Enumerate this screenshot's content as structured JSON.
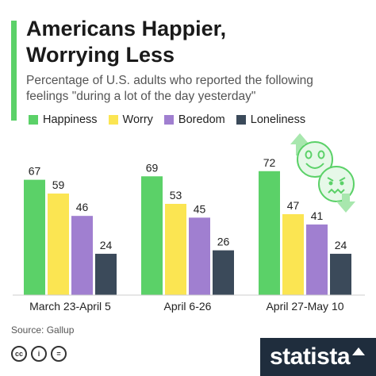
{
  "header": {
    "title_line1": "Americans Happier,",
    "title_line2": "Worrying Less",
    "subtitle_line1": "Percentage of U.S. adults who reported the following",
    "subtitle_line2": "feelings \"during a lot of the day yesterday\""
  },
  "colors": {
    "accent": "#5bd168",
    "happiness": "#5bd168",
    "worry": "#fbe552",
    "boredom": "#a07fd0",
    "loneliness": "#3b4a5a"
  },
  "chart_data": {
    "type": "bar",
    "title": "Americans Happier, Worrying Less",
    "subtitle": "Percentage of U.S. adults who reported the following feelings \"during a lot of the day yesterday\"",
    "categories": [
      "March 23-April 5",
      "April 6-26",
      "April 27-May 10"
    ],
    "series": [
      {
        "name": "Happiness",
        "color": "#5bd168",
        "values": [
          67,
          69,
          72
        ]
      },
      {
        "name": "Worry",
        "color": "#fbe552",
        "values": [
          59,
          53,
          47
        ]
      },
      {
        "name": "Boredom",
        "color": "#a07fd0",
        "values": [
          46,
          45,
          41
        ]
      },
      {
        "name": "Loneliness",
        "color": "#3b4a5a",
        "values": [
          24,
          26,
          24
        ]
      }
    ],
    "ylim": [
      0,
      100
    ],
    "grid": false,
    "legend_position": "top",
    "data_labels": true
  },
  "footer": {
    "source": "Source: Gallup",
    "license_icons": [
      "cc",
      "i",
      "="
    ],
    "brand": "statista"
  },
  "illustration": {
    "icons": [
      "happy-face-icon",
      "worried-face-icon",
      "up-arrow-icon",
      "down-arrow-icon"
    ]
  }
}
